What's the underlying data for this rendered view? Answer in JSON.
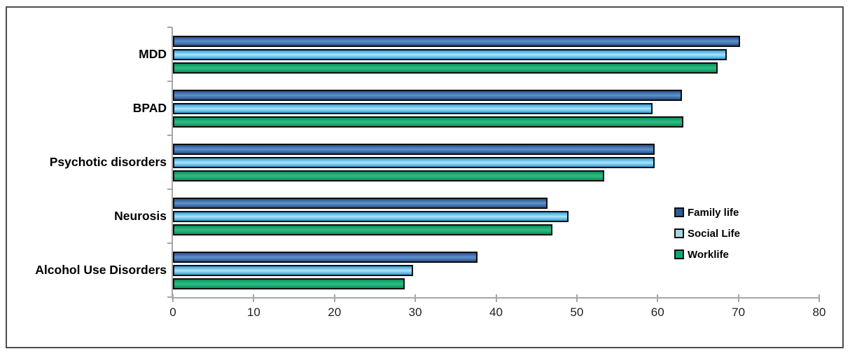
{
  "chart_data": {
    "type": "bar",
    "orientation": "horizontal",
    "title": "",
    "xlabel": "",
    "ylabel": "",
    "categories": [
      "MDD",
      "BPAD",
      "Psychotic disorders",
      "Neurosis",
      "Alcohol Use Disorders"
    ],
    "series": [
      {
        "name": "Family life",
        "values": [
          70.2,
          63.0,
          59.6,
          46.4,
          37.7
        ]
      },
      {
        "name": "Social Life",
        "values": [
          68.6,
          59.4,
          59.6,
          49.0,
          29.7
        ]
      },
      {
        "name": "Worklife",
        "values": [
          67.4,
          63.2,
          53.4,
          47.0,
          28.7
        ]
      }
    ],
    "xlim": [
      0,
      80
    ],
    "x_ticks": [
      0,
      10,
      20,
      30,
      40,
      50,
      60,
      70,
      80
    ],
    "grid": false,
    "legend_position": "center-right",
    "legend_entries": [
      "Family life",
      "Social Life",
      "Worklife"
    ]
  },
  "colors": {
    "background": "#ffffff",
    "frame_border": "#4d4d4d",
    "axis_line": "#a6a6a6",
    "tick_label": "#1f1f1f",
    "category_label": "#000000",
    "bar_border": "#0d0d0d",
    "series": [
      {
        "name": "Family life",
        "dark": "#2a5085",
        "light": "#5e93d1",
        "swatch": "#2e5b97"
      },
      {
        "name": "Social Life",
        "dark": "#2f9fd6",
        "light": "#aee3fa",
        "swatch": "#a9d5e2"
      },
      {
        "name": "Worklife",
        "dark": "#07935c",
        "light": "#2fbc85",
        "swatch": "#0aa876"
      }
    ]
  }
}
